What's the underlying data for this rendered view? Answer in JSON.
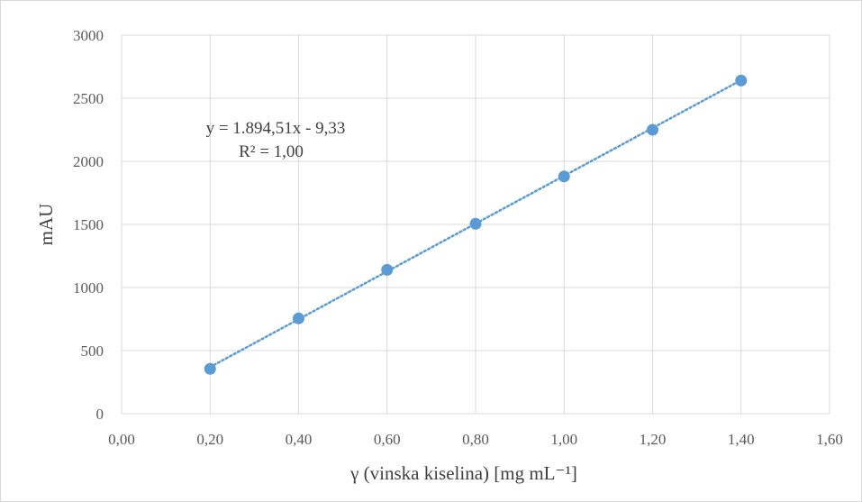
{
  "chart_data": {
    "type": "scatter",
    "xlabel": "γ (vinska kiselina) [mg mL⁻¹]",
    "ylabel": "mAU",
    "xlim": [
      0,
      1.6
    ],
    "ylim": [
      0,
      3000
    ],
    "x_ticks": [
      "0,00",
      "0,20",
      "0,40",
      "0,60",
      "0,80",
      "1,00",
      "1,20",
      "1,40",
      "1,60"
    ],
    "y_ticks": [
      "0",
      "500",
      "1000",
      "1500",
      "2000",
      "2500",
      "3000"
    ],
    "grid": true,
    "series": [
      {
        "x": [
          0.2,
          0.4,
          0.6,
          0.8,
          1.0,
          1.2,
          1.4
        ],
        "y": [
          355,
          755,
          1140,
          1505,
          1880,
          2250,
          2640
        ]
      }
    ],
    "trendline": {
      "type": "linear",
      "slope": 1894.51,
      "intercept": -9.33,
      "style": "dotted",
      "equation_text": "y = 1.894,51x - 9,33",
      "r2_text": "R² = 1,00"
    },
    "colors": {
      "marker": "#5b9bd5",
      "trendline": "#5b9bd5",
      "grid": "#d9d9d9"
    }
  }
}
